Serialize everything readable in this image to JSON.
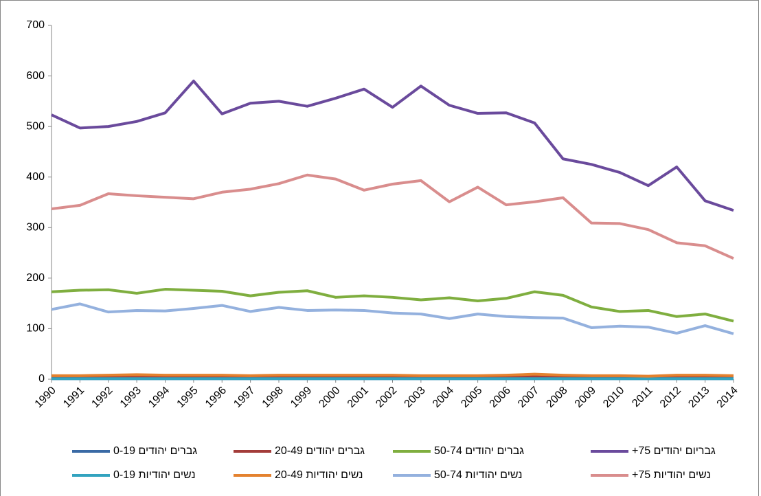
{
  "chart_data": {
    "type": "line",
    "categories": [
      "1990",
      "1991",
      "1992",
      "1993",
      "1994",
      "1995",
      "1996",
      "1997",
      "1998",
      "1999",
      "2000",
      "2001",
      "2002",
      "2003",
      "2004",
      "2005",
      "2006",
      "2007",
      "2008",
      "2009",
      "2010",
      "2011",
      "2012",
      "2013",
      "2014"
    ],
    "series": [
      {
        "name": "גברים יהודים 0-19",
        "color": "#3a6aa5",
        "values": [
          1,
          1,
          1,
          1,
          1,
          1,
          1,
          1,
          1,
          1,
          1,
          1,
          1,
          1,
          1,
          1,
          1,
          1,
          1,
          1,
          1,
          1,
          1,
          1,
          1
        ]
      },
      {
        "name": "גברים יהודים 20-49",
        "color": "#a33c3a",
        "values": [
          5,
          5,
          6,
          6,
          5,
          6,
          5,
          5,
          6,
          5,
          5,
          5,
          6,
          5,
          5,
          5,
          5,
          6,
          5,
          4,
          5,
          4,
          5,
          4,
          5
        ]
      },
      {
        "name": "גברים יהודים 50-74",
        "color": "#7fae3f",
        "values": [
          173,
          176,
          177,
          170,
          178,
          176,
          174,
          165,
          172,
          175,
          162,
          165,
          162,
          157,
          161,
          155,
          160,
          173,
          166,
          143,
          134,
          136,
          124,
          129,
          115
        ]
      },
      {
        "name": "גבריום יהודים 75+",
        "color": "#6a4a9c",
        "values": [
          523,
          497,
          500,
          510,
          527,
          590,
          525,
          546,
          550,
          540,
          556,
          574,
          538,
          580,
          542,
          526,
          527,
          507,
          436,
          425,
          409,
          383,
          420,
          353,
          334
        ]
      },
      {
        "name": "נשים יהודיות 0-19",
        "color": "#33a3bf",
        "values": [
          1,
          1,
          1,
          1,
          1,
          1,
          1,
          1,
          1,
          1,
          1,
          1,
          1,
          1,
          1,
          1,
          1,
          1,
          1,
          1,
          1,
          1,
          1,
          1,
          1
        ]
      },
      {
        "name": "נשים יהודיות 20-49",
        "color": "#e4822f",
        "values": [
          7,
          7,
          8,
          9,
          8,
          8,
          8,
          7,
          8,
          8,
          8,
          8,
          8,
          7,
          7,
          7,
          8,
          10,
          8,
          7,
          7,
          6,
          8,
          8,
          7
        ]
      },
      {
        "name": "נשים יהודיות 50-74",
        "color": "#94b1de",
        "values": [
          138,
          149,
          133,
          136,
          135,
          140,
          146,
          134,
          142,
          136,
          137,
          136,
          131,
          129,
          120,
          129,
          124,
          122,
          121,
          102,
          105,
          103,
          91,
          106,
          90
        ]
      },
      {
        "name": "נשים יהודיות 75+",
        "color": "#d98d8d",
        "values": [
          337,
          344,
          367,
          363,
          360,
          357,
          370,
          376,
          387,
          404,
          396,
          374,
          386,
          393,
          351,
          380,
          345,
          351,
          359,
          309,
          308,
          296,
          270,
          264,
          239
        ]
      }
    ],
    "ylim": [
      0,
      700
    ],
    "yticks": [
      0,
      100,
      200,
      300,
      400,
      500,
      600,
      700
    ],
    "grid": false
  }
}
